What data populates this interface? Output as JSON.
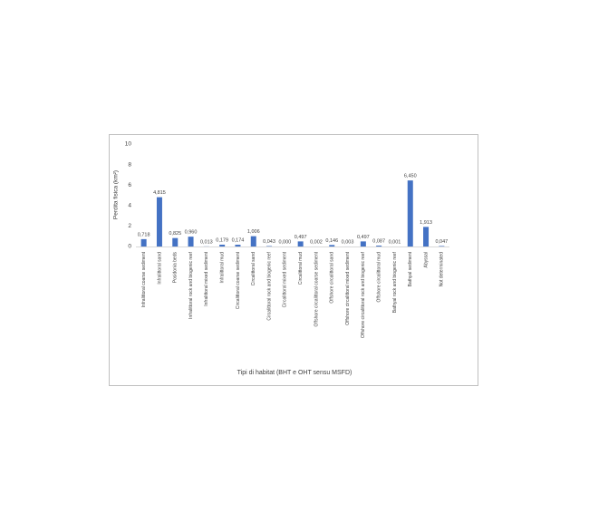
{
  "chart_data": {
    "type": "bar",
    "y_label": "Perdita fisica (km²)",
    "x_label": "Tipi di habitat (BHT e OHT sensu MSFD)",
    "categories": [
      "Infralittoral coarse sediment",
      "Infralittoral sand",
      "Posidonia beds",
      "Infralittoral rock and biogenic reef",
      "Infralittoral mixed sediment",
      "Infralittoral mud",
      "Circalittoral coarse sediment",
      "Circalittoral sand",
      "Circalittoral rock and biogenic reef",
      "Circalittoral mixed sediment",
      "Circalittoral mud",
      "Offshore circalittoral coarse sediment",
      "Offshore circalittoral sand",
      "Offshore circalittoral mixed sediment",
      "Offshore circalittoral rock and biogenic reef",
      "Offshore circalittoral mud",
      "Bathyal rock and biogenic reef",
      "Bathyal sediment",
      "Abyssal",
      "Not determinated"
    ],
    "values": [
      0.718,
      4.815,
      0.825,
      0.96,
      0.013,
      0.179,
      0.174,
      1.006,
      0.043,
      0.0,
      0.497,
      0.002,
      0.146,
      0.003,
      0.497,
      0.087,
      0.001,
      6.45,
      1.913,
      0.047
    ],
    "value_labels": [
      "0,718",
      "4,815",
      "0,825",
      "0,960",
      "0,013",
      "0,179",
      "0,174",
      "1,006",
      "0,043",
      "0,000",
      "0,497",
      "0,002",
      "0,146",
      "0,003",
      "0,497",
      "0,087",
      "0,001",
      "6,450",
      "1,913",
      "0,047"
    ],
    "color": "#4472c4",
    "ylim": [
      0,
      10
    ],
    "yticks": [
      0,
      2,
      4,
      6,
      8,
      10
    ],
    "grid": false
  }
}
